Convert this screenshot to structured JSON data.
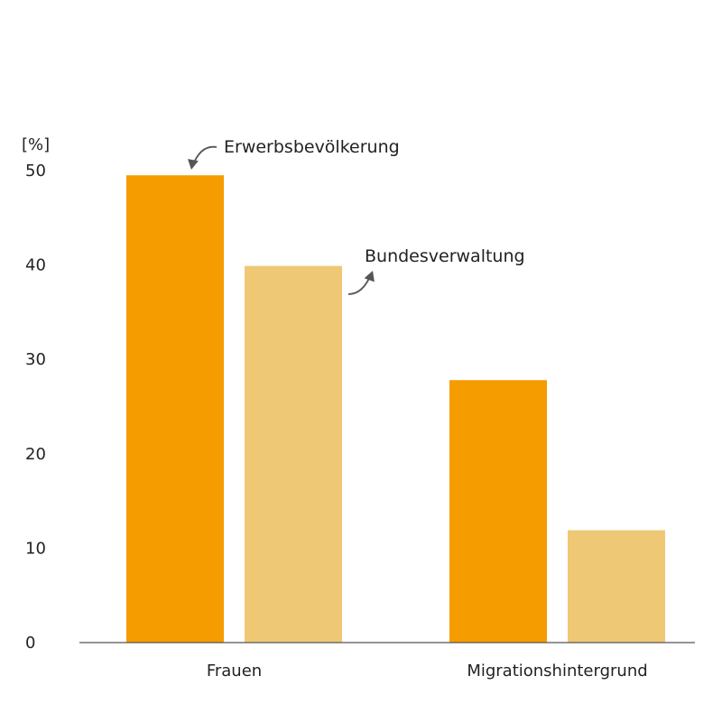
{
  "chart_data": {
    "type": "bar",
    "title": "",
    "xlabel": "",
    "ylabel": "[%]",
    "ylim": [
      0,
      50
    ],
    "yticks": [
      0,
      10,
      20,
      30,
      40,
      50
    ],
    "categories": [
      "Frauen",
      "Migrationshintergrund"
    ],
    "series": [
      {
        "name": "Erwerbsbevölkerung",
        "values": [
          49.5,
          27.8
        ],
        "color": "#f59c00"
      },
      {
        "name": "Bundesverwaltung",
        "values": [
          39.9,
          11.9
        ],
        "color": "#efc875"
      }
    ],
    "grid": false,
    "legend": "annotated-labels-with-arrows"
  }
}
